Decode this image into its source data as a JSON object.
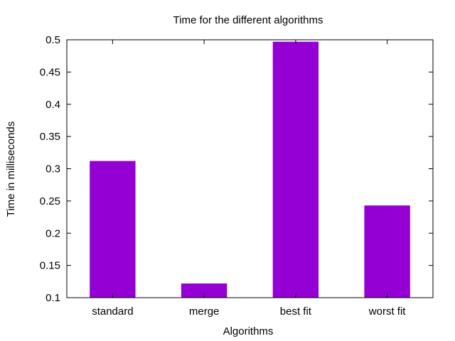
{
  "chart_data": {
    "type": "bar",
    "title": "Time for the different algorithms",
    "xlabel": "Algorithms",
    "ylabel": "Time in milliseconds",
    "categories": [
      "standard",
      "merge",
      "best fit",
      "worst fit"
    ],
    "values": [
      0.312,
      0.122,
      0.497,
      0.243
    ],
    "ylim": [
      0.1,
      0.5
    ],
    "yticks": [
      0.1,
      0.15,
      0.2,
      0.25,
      0.3,
      0.35,
      0.4,
      0.45,
      0.5
    ],
    "ytick_labels": [
      "0.1",
      "0.15",
      "0.2",
      "0.25",
      "0.3",
      "0.35",
      "0.4",
      "0.45",
      "0.5"
    ],
    "bar_color": "#9400d3",
    "grid": false,
    "legend": "none"
  }
}
